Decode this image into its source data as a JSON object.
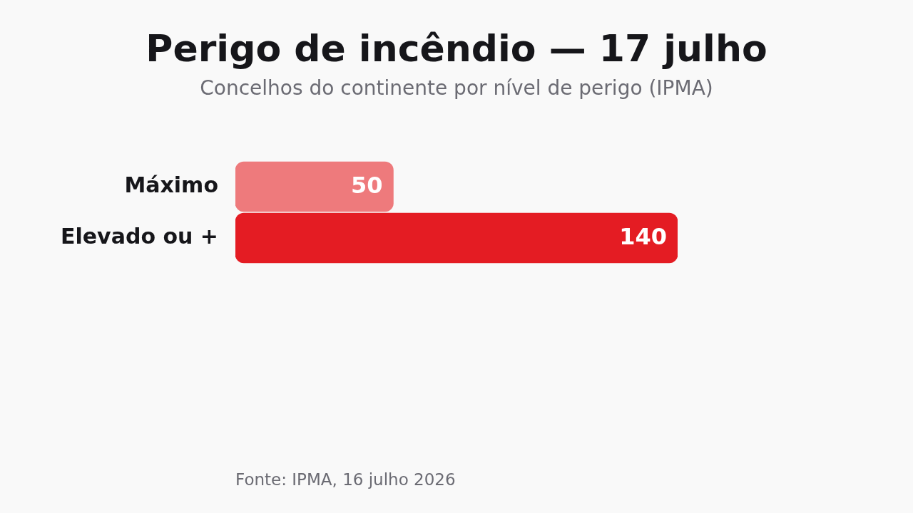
{
  "chart_data": {
    "type": "bar",
    "orientation": "horizontal",
    "title": "Perigo de incêndio — 17 julho",
    "subtitle": "Concelhos do continente por nível de perigo (IPMA)",
    "categories": [
      "Máximo",
      "Elevado ou +"
    ],
    "values": [
      50,
      140
    ],
    "colors": [
      "#ee7a7c",
      "#e41c23"
    ],
    "data_labels": true,
    "annotations": [
      "Fonte: IPMA, 16 julho 2026"
    ]
  }
}
